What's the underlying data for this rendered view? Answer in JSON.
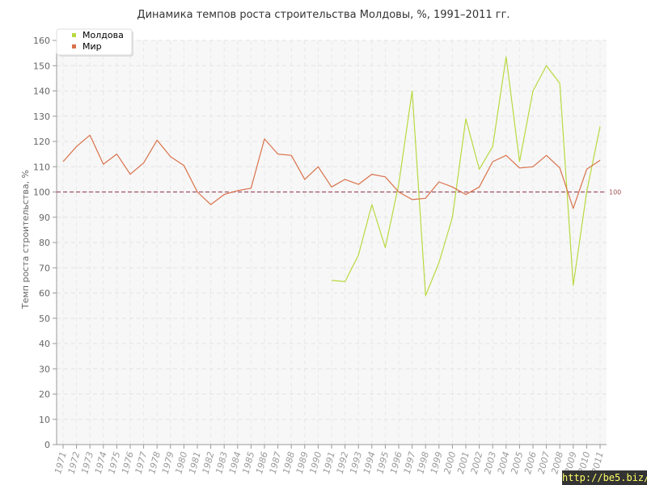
{
  "chart_data": {
    "type": "line",
    "title": "Динамика темпов роста строительства Молдовы, %, 1991–2011 гг.",
    "xlabel": "",
    "ylabel": "Темп роста строительства, %",
    "ylim": [
      0,
      160
    ],
    "yticks": [
      "0",
      "10",
      "20",
      "30",
      "40",
      "50",
      "60",
      "70",
      "80",
      "90",
      "100",
      "110",
      "120",
      "130",
      "140",
      "150",
      "160"
    ],
    "x": [
      "1971",
      "1972",
      "1973",
      "1974",
      "1975",
      "1976",
      "1977",
      "1978",
      "1979",
      "1980",
      "1981",
      "1982",
      "1983",
      "1984",
      "1985",
      "1986",
      "1987",
      "1988",
      "1989",
      "1990",
      "1991",
      "1992",
      "1993",
      "1994",
      "1995",
      "1996",
      "1997",
      "1998",
      "1999",
      "2000",
      "2001",
      "2002",
      "2003",
      "2004",
      "2005",
      "2006",
      "2007",
      "2008",
      "2009",
      "2010",
      "2011"
    ],
    "grid": true,
    "legend_position": "top-left",
    "reference_line": {
      "value": 100,
      "label": "100",
      "color": "#a05060"
    },
    "series": [
      {
        "name": "Молдова",
        "color": "#b8d940",
        "values": [
          null,
          null,
          null,
          null,
          null,
          null,
          null,
          null,
          null,
          null,
          null,
          null,
          null,
          null,
          null,
          null,
          null,
          null,
          null,
          null,
          65,
          64.5,
          75,
          95,
          78,
          103,
          140,
          59,
          72,
          90,
          129,
          109,
          118,
          153.5,
          112,
          140,
          150,
          143,
          63,
          100,
          126
        ]
      },
      {
        "name": "Мир",
        "color": "#d9714a",
        "values": [
          112,
          118,
          122.5,
          111,
          115,
          107,
          111.5,
          120.5,
          114,
          110.5,
          100,
          95,
          99,
          100.5,
          101.5,
          121,
          115,
          114.5,
          105,
          110,
          102,
          105,
          103,
          107,
          106,
          100,
          97,
          97.5,
          104,
          102,
          99,
          102,
          112,
          114.5,
          109.5,
          110,
          114.5,
          109.5,
          93.5,
          109,
          112.5
        ]
      }
    ]
  },
  "watermark": "http://be5.biz/"
}
